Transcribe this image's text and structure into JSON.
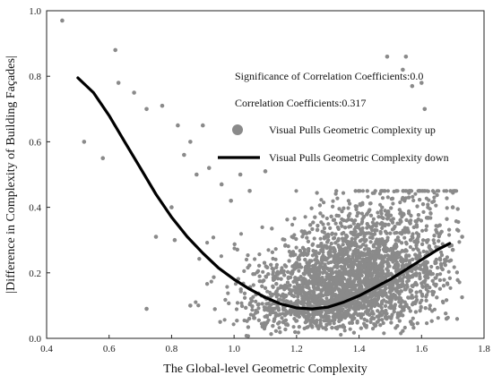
{
  "chart_data": {
    "type": "scatter",
    "xlabel": "The Global-level Geometric Complexity",
    "ylabel": "|Difference in Complexity of Building Façades|",
    "xlim": [
      0.4,
      1.8
    ],
    "ylim": [
      0.0,
      1.0
    ],
    "x_ticks": [
      "0.4",
      "0.6",
      "0.8",
      "1.0",
      "1.2",
      "1.4",
      "1.6",
      "1.8"
    ],
    "y_ticks": [
      "0.0",
      "0.2",
      "0.4",
      "0.6",
      "0.8",
      "1.0"
    ],
    "grid": false,
    "annotations": {
      "significance": "Significance of Correlation Coefficients:0.0",
      "correlation": "Correlation Coefficients:0.317"
    },
    "legend": {
      "placement": "upper-right",
      "entries": [
        {
          "label": "Visual Pulls Geometric Complexity up",
          "marker": "circle",
          "color": "#8a8a8a"
        },
        {
          "label": "Visual Pulls Geometric Complexity down",
          "marker": "line",
          "color": "#000000"
        }
      ]
    },
    "series": [
      {
        "name": "Visual Pulls Geometric Complexity up",
        "kind": "scatter",
        "color": "#8a8a8a",
        "points": [
          [
            0.45,
            0.97
          ],
          [
            0.62,
            0.88
          ],
          [
            0.52,
            0.6
          ],
          [
            0.58,
            0.55
          ],
          [
            0.63,
            0.78
          ],
          [
            0.68,
            0.75
          ],
          [
            0.72,
            0.7
          ],
          [
            0.77,
            0.71
          ],
          [
            0.82,
            0.65
          ],
          [
            0.9,
            0.65
          ],
          [
            0.86,
            0.6
          ],
          [
            0.8,
            0.4
          ],
          [
            0.75,
            0.31
          ],
          [
            0.72,
            0.09
          ],
          [
            0.84,
            0.56
          ],
          [
            0.88,
            0.5
          ],
          [
            0.92,
            0.52
          ],
          [
            0.96,
            0.47
          ],
          [
            0.99,
            0.42
          ],
          [
            1.02,
            0.5
          ],
          [
            1.05,
            0.45
          ],
          [
            1.1,
            0.51
          ],
          [
            1.49,
            0.86
          ],
          [
            1.55,
            0.86
          ],
          [
            1.54,
            0.82
          ],
          [
            1.57,
            0.77
          ],
          [
            1.61,
            0.7
          ],
          [
            1.6,
            0.78
          ],
          [
            1.7,
            0.4
          ],
          [
            1.73,
            0.31
          ],
          [
            1.68,
            0.06
          ],
          [
            1.7,
            0.27
          ],
          [
            0.81,
            0.3
          ],
          [
            0.86,
            0.1
          ]
        ]
      },
      {
        "name": "Visual Pulls Geometric Complexity down",
        "kind": "line",
        "color": "#000000",
        "points": [
          [
            0.5,
            0.795
          ],
          [
            0.55,
            0.75
          ],
          [
            0.6,
            0.68
          ],
          [
            0.65,
            0.6
          ],
          [
            0.7,
            0.52
          ],
          [
            0.75,
            0.44
          ],
          [
            0.8,
            0.37
          ],
          [
            0.85,
            0.31
          ],
          [
            0.9,
            0.26
          ],
          [
            0.95,
            0.215
          ],
          [
            1.0,
            0.18
          ],
          [
            1.05,
            0.15
          ],
          [
            1.1,
            0.125
          ],
          [
            1.15,
            0.105
          ],
          [
            1.2,
            0.093
          ],
          [
            1.25,
            0.09
          ],
          [
            1.3,
            0.095
          ],
          [
            1.35,
            0.11
          ],
          [
            1.4,
            0.13
          ],
          [
            1.45,
            0.155
          ],
          [
            1.5,
            0.18
          ],
          [
            1.55,
            0.21
          ],
          [
            1.6,
            0.24
          ],
          [
            1.65,
            0.27
          ],
          [
            1.69,
            0.29
          ]
        ]
      }
    ]
  }
}
